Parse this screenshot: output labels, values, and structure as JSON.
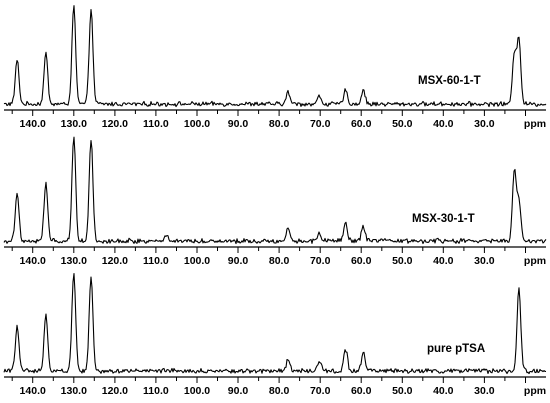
{
  "chart_data": [
    {
      "type": "line",
      "series": [
        {
          "name": "MSX-60-1-T",
          "peaks": [
            {
              "ppm": 143.8,
              "height": 0.45
            },
            {
              "ppm": 136.8,
              "height": 0.52
            },
            {
              "ppm": 130.0,
              "height": 1.0
            },
            {
              "ppm": 125.8,
              "height": 0.98
            },
            {
              "ppm": 77.8,
              "height": 0.12
            },
            {
              "ppm": 70.2,
              "height": 0.08
            },
            {
              "ppm": 63.8,
              "height": 0.14
            },
            {
              "ppm": 59.5,
              "height": 0.14
            },
            {
              "ppm": 22.7,
              "height": 0.52
            },
            {
              "ppm": 21.6,
              "height": 0.68
            }
          ]
        }
      ],
      "xlabel": "ppm",
      "xlim": [
        147,
        15
      ],
      "x_ticks": [
        "140.0",
        "130.0",
        "120.0",
        "110.0",
        "100.0",
        "90.0",
        "80.0",
        "70.0",
        "60.0",
        "50.0",
        "40.0",
        "30.0"
      ]
    },
    {
      "type": "line",
      "series": [
        {
          "name": "MSX-30-1-T",
          "peaks": [
            {
              "ppm": 143.8,
              "height": 0.47
            },
            {
              "ppm": 136.8,
              "height": 0.55
            },
            {
              "ppm": 130.0,
              "height": 1.0
            },
            {
              "ppm": 125.8,
              "height": 0.98
            },
            {
              "ppm": 107.5,
              "height": 0.06
            },
            {
              "ppm": 77.8,
              "height": 0.12
            },
            {
              "ppm": 70.2,
              "height": 0.08
            },
            {
              "ppm": 63.8,
              "height": 0.17
            },
            {
              "ppm": 59.5,
              "height": 0.14
            },
            {
              "ppm": 22.7,
              "height": 0.68
            },
            {
              "ppm": 21.6,
              "height": 0.38
            }
          ]
        }
      ],
      "xlabel": "ppm",
      "xlim": [
        147,
        15
      ],
      "x_ticks": [
        "140.0",
        "130.0",
        "120.0",
        "110.0",
        "100.0",
        "90.0",
        "80.0",
        "70.0",
        "60.0",
        "50.0",
        "40.0",
        "30.0"
      ]
    },
    {
      "type": "line",
      "series": [
        {
          "name": "pure pTSA",
          "peaks": [
            {
              "ppm": 143.8,
              "height": 0.45
            },
            {
              "ppm": 136.8,
              "height": 0.56
            },
            {
              "ppm": 130.0,
              "height": 1.0
            },
            {
              "ppm": 125.8,
              "height": 0.95
            },
            {
              "ppm": 77.8,
              "height": 0.12
            },
            {
              "ppm": 70.2,
              "height": 0.11
            },
            {
              "ppm": 63.8,
              "height": 0.22
            },
            {
              "ppm": 59.5,
              "height": 0.19
            },
            {
              "ppm": 21.6,
              "height": 0.83
            }
          ]
        }
      ],
      "xlabel": "ppm",
      "xlim": [
        147,
        15
      ],
      "x_ticks": [
        "140.0",
        "130.0",
        "120.0",
        "110.0",
        "100.0",
        "90.0",
        "80.0",
        "70.0",
        "60.0",
        "50.0",
        "40.0",
        "30.0"
      ]
    }
  ]
}
